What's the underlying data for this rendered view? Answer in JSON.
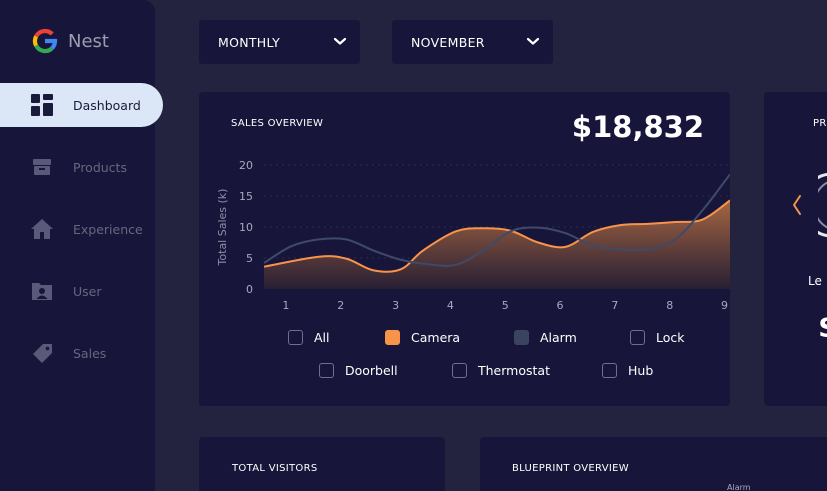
{
  "brand": {
    "name": "Nest"
  },
  "sidebar": {
    "items": [
      {
        "label": "Dashboard",
        "icon": "dashboard-icon",
        "active": true
      },
      {
        "label": "Products",
        "icon": "products-icon"
      },
      {
        "label": "Experience",
        "icon": "home-icon"
      },
      {
        "label": "User",
        "icon": "user-icon"
      },
      {
        "label": "Sales",
        "icon": "tag-icon"
      }
    ]
  },
  "filters": {
    "period": "MONTHLY",
    "month": "NOVEMBER"
  },
  "sales_card": {
    "title": "SALES OVERVIEW",
    "total": "$18,832"
  },
  "chart_data": {
    "type": "area",
    "ylabel": "Total Sales (k)",
    "xlabel": "",
    "x": [
      1,
      2,
      3,
      4,
      5,
      6,
      7,
      8,
      9
    ],
    "xlim": [
      0.6,
      9.1
    ],
    "ylim": [
      0,
      20
    ],
    "yticks": [
      0,
      5,
      10,
      15,
      20
    ],
    "grid": true,
    "series": [
      {
        "name": "Camera",
        "color": "#f8944a",
        "filled": true,
        "x": [
          0.6,
          1.6,
          2.1,
          2.6,
          3.1,
          3.5,
          4.1,
          4.6,
          5.1,
          5.6,
          6.1,
          6.6,
          7.1,
          7.6,
          8.1,
          8.6,
          9.1
        ],
        "y": [
          3.6,
          5.2,
          4.9,
          3.0,
          3.2,
          6.2,
          9.3,
          9.8,
          9.4,
          7.5,
          6.8,
          9.2,
          10.3,
          10.5,
          10.8,
          11.2,
          14.3
        ]
      },
      {
        "name": "Alarm",
        "color": "#3e4a68",
        "filled": false,
        "x": [
          0.6,
          1.1,
          1.6,
          2.1,
          2.6,
          3.1,
          3.6,
          4.1,
          4.6,
          5.1,
          5.6,
          6.1,
          6.6,
          7.1,
          7.6,
          8.1,
          8.6,
          9.1
        ],
        "y": [
          4.2,
          6.9,
          8.0,
          8.0,
          6.2,
          4.7,
          4.0,
          3.9,
          6.2,
          9.3,
          9.9,
          9.0,
          7.0,
          6.4,
          6.4,
          8.0,
          12.7,
          18.5
        ]
      }
    ]
  },
  "legend": {
    "items": [
      {
        "label": "All",
        "checked": false
      },
      {
        "label": "Camera",
        "checked": true,
        "color": "#f8944a"
      },
      {
        "label": "Alarm",
        "checked": true,
        "color": "#3a4460"
      },
      {
        "label": "Lock",
        "checked": false
      },
      {
        "label": "Doorbell",
        "checked": false
      },
      {
        "label": "Thermostat",
        "checked": false
      },
      {
        "label": "Hub",
        "checked": false
      }
    ]
  },
  "product_card": {
    "title_fragment": "PR",
    "label_fragment": "Le",
    "value_fragment": "$"
  },
  "bottom": {
    "visitors_title": "TOTAL VISITORS",
    "blueprint_title": "BLUEPRINT OVERVIEW",
    "blueprint_label": "Alarm"
  }
}
